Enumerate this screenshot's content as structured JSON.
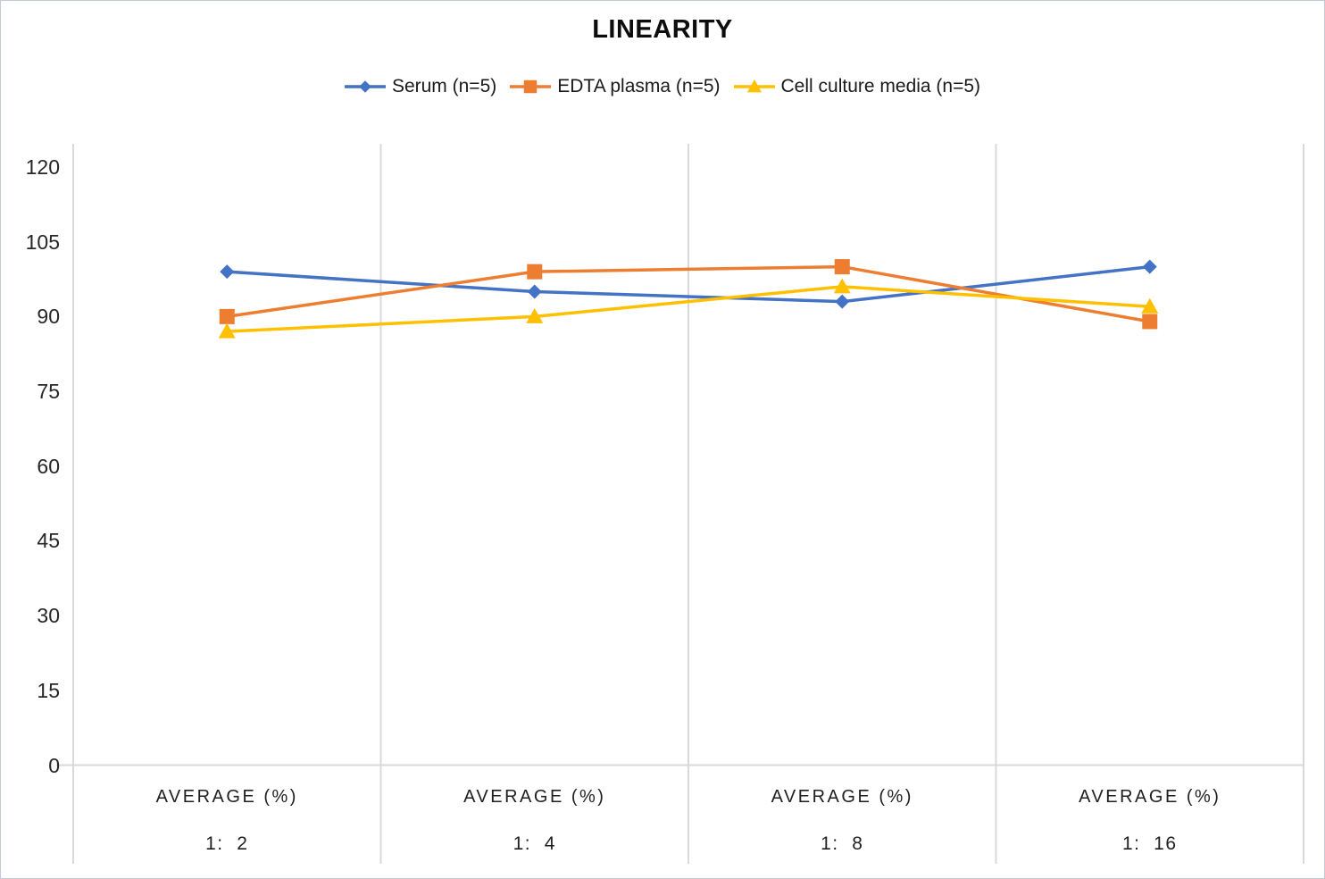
{
  "chart_data": {
    "type": "line",
    "title": "LINEARITY",
    "legend_position": "top",
    "grid": "vertical-only",
    "ylim": [
      0,
      120
    ],
    "ytick_step": 15,
    "yticks": [
      120,
      105,
      90,
      75,
      60,
      45,
      30,
      15,
      0
    ],
    "x_axis": {
      "group_label": "AVERAGE (%)",
      "categories": [
        "1:  2",
        "1:  4",
        "1:  8",
        "1:  16"
      ]
    },
    "series": [
      {
        "name": "Serum (n=5)",
        "color": "#4472C4",
        "marker": "diamond",
        "values": [
          99,
          95,
          93,
          100
        ]
      },
      {
        "name": "EDTA plasma (n=5)",
        "color": "#ED7D31",
        "marker": "square",
        "values": [
          90,
          99,
          100,
          89
        ]
      },
      {
        "name": "Cell culture media (n=5)",
        "color": "#FFC000",
        "marker": "triangle",
        "values": [
          87,
          90,
          96,
          92
        ]
      }
    ],
    "colors": {
      "gridline": "#D9D9D9",
      "axis_line": "#D9D9D9",
      "axis_text": "#262626",
      "title_text": "#0D0D0D"
    }
  }
}
